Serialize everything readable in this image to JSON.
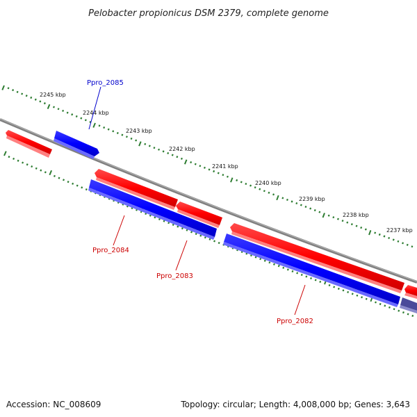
{
  "header": {
    "title": "Pelobacter propionicus DSM 2379, complete genome"
  },
  "ruler": {
    "labels": [
      "2245 kbp",
      "2244 kbp",
      "2243 kbp",
      "2242 kbp",
      "2241 kbp",
      "2240 kbp",
      "2239 kbp",
      "2238 kbp",
      "2237 kbp"
    ]
  },
  "genes": {
    "ppro_2085": {
      "label": "Ppro_2085",
      "color": "#0000cc"
    },
    "ppro_2084": {
      "label": "Ppro_2084",
      "color": "#cc0000"
    },
    "ppro_2083": {
      "label": "Ppro_2083",
      "color": "#cc0000"
    },
    "ppro_2082": {
      "label": "Ppro_2082",
      "color": "#cc0000"
    }
  },
  "colors": {
    "forward": "#ff0000",
    "reverse": "#0000ff",
    "backbone": "#808080",
    "ticks": "#2e7d32"
  },
  "footer": {
    "accession": "Accession: NC_008609",
    "stats": "Topology: circular; Length: 4,008,000 bp; Genes: 3,643"
  }
}
